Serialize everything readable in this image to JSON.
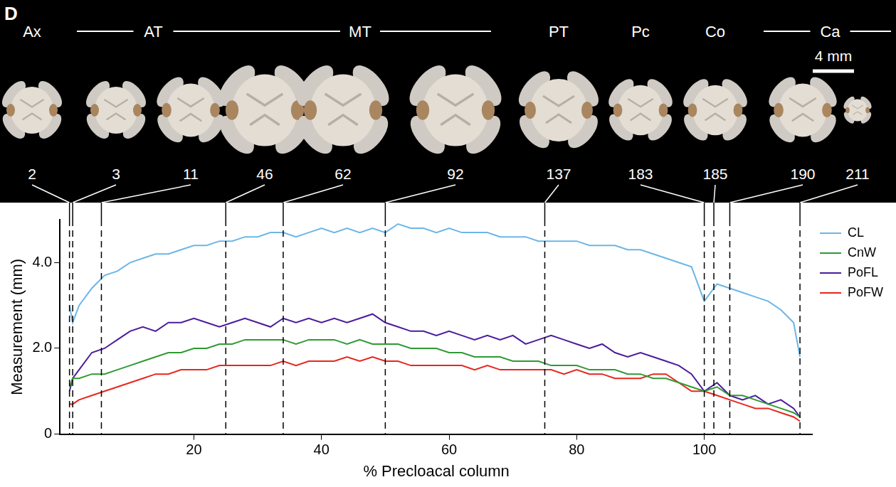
{
  "figure": {
    "panel_label": "D",
    "scale_bar": "4 mm",
    "regions": [
      {
        "label": "Ax",
        "vertebrae": [
          2
        ]
      },
      {
        "label": "AT",
        "vertebrae": [
          3,
          11
        ]
      },
      {
        "label": "MT",
        "vertebrae": [
          46,
          62,
          92
        ]
      },
      {
        "label": "PT",
        "vertebrae": [
          137
        ]
      },
      {
        "label": "Pc",
        "vertebrae": [
          183
        ]
      },
      {
        "label": "Co",
        "vertebrae": [
          185
        ]
      },
      {
        "label": "Ca",
        "vertebrae": [
          190,
          211
        ]
      }
    ]
  },
  "chart_data": {
    "type": "line",
    "x_label": "% Precloacal column",
    "y_label": "Measurement (mm)",
    "x": [
      0.5,
      1,
      2,
      4,
      6,
      8,
      10,
      12,
      14,
      16,
      18,
      20,
      22,
      24,
      26,
      28,
      30,
      32,
      34,
      36,
      38,
      40,
      42,
      44,
      46,
      48,
      50,
      52,
      54,
      56,
      58,
      60,
      62,
      64,
      66,
      68,
      70,
      72,
      74,
      76,
      78,
      80,
      82,
      84,
      86,
      88,
      90,
      92,
      94,
      96,
      98,
      100,
      102,
      104,
      106,
      108,
      110,
      112,
      114,
      115
    ],
    "series": [
      {
        "name": "CL",
        "color": "#6cb6e6",
        "values": [
          3.0,
          2.6,
          3.0,
          3.4,
          3.7,
          3.8,
          4.0,
          4.1,
          4.2,
          4.2,
          4.3,
          4.4,
          4.4,
          4.5,
          4.5,
          4.6,
          4.6,
          4.7,
          4.7,
          4.6,
          4.7,
          4.8,
          4.7,
          4.8,
          4.7,
          4.8,
          4.7,
          4.9,
          4.8,
          4.8,
          4.7,
          4.8,
          4.7,
          4.7,
          4.7,
          4.6,
          4.6,
          4.6,
          4.5,
          4.5,
          4.5,
          4.5,
          4.4,
          4.4,
          4.4,
          4.3,
          4.3,
          4.2,
          4.1,
          4.0,
          3.9,
          3.1,
          3.5,
          3.4,
          3.3,
          3.2,
          3.1,
          2.9,
          2.6,
          1.8
        ]
      },
      {
        "name": "CnW",
        "color": "#2f9a33",
        "values": [
          1.1,
          1.3,
          1.3,
          1.4,
          1.4,
          1.5,
          1.6,
          1.7,
          1.8,
          1.9,
          1.9,
          2.0,
          2.0,
          2.1,
          2.1,
          2.2,
          2.2,
          2.2,
          2.2,
          2.1,
          2.2,
          2.2,
          2.2,
          2.1,
          2.2,
          2.1,
          2.1,
          2.1,
          2.0,
          2.0,
          2.0,
          1.9,
          1.9,
          1.8,
          1.8,
          1.8,
          1.7,
          1.7,
          1.7,
          1.6,
          1.6,
          1.6,
          1.5,
          1.5,
          1.5,
          1.4,
          1.4,
          1.3,
          1.3,
          1.2,
          1.1,
          1.0,
          1.1,
          0.9,
          0.9,
          0.8,
          0.7,
          0.6,
          0.5,
          0.4
        ]
      },
      {
        "name": "PoFL",
        "color": "#4a1c9c",
        "values": [
          1.0,
          1.3,
          1.5,
          1.9,
          2.0,
          2.2,
          2.4,
          2.5,
          2.4,
          2.6,
          2.6,
          2.7,
          2.6,
          2.5,
          2.6,
          2.7,
          2.6,
          2.5,
          2.7,
          2.6,
          2.7,
          2.6,
          2.7,
          2.6,
          2.7,
          2.8,
          2.6,
          2.5,
          2.4,
          2.4,
          2.3,
          2.4,
          2.3,
          2.2,
          2.3,
          2.2,
          2.3,
          2.1,
          2.2,
          2.3,
          2.2,
          2.1,
          2.0,
          2.1,
          1.9,
          1.8,
          1.9,
          1.8,
          1.7,
          1.6,
          1.4,
          1.0,
          1.2,
          0.9,
          0.8,
          0.9,
          0.7,
          0.8,
          0.6,
          0.4
        ]
      },
      {
        "name": "PoFW",
        "color": "#e8261e",
        "values": [
          0.7,
          0.7,
          0.8,
          0.9,
          1.0,
          1.1,
          1.2,
          1.3,
          1.4,
          1.4,
          1.5,
          1.5,
          1.5,
          1.6,
          1.6,
          1.6,
          1.6,
          1.6,
          1.7,
          1.6,
          1.7,
          1.7,
          1.7,
          1.8,
          1.7,
          1.8,
          1.7,
          1.7,
          1.6,
          1.6,
          1.6,
          1.6,
          1.6,
          1.5,
          1.6,
          1.5,
          1.5,
          1.5,
          1.5,
          1.5,
          1.4,
          1.5,
          1.4,
          1.4,
          1.3,
          1.3,
          1.3,
          1.4,
          1.4,
          1.2,
          1.0,
          1.0,
          0.9,
          0.8,
          0.7,
          0.6,
          0.6,
          0.5,
          0.4,
          0.3
        ]
      }
    ],
    "vertebra_markers": [
      {
        "vertebra": 2,
        "x": 0.5
      },
      {
        "vertebra": 3,
        "x": 1
      },
      {
        "vertebra": 11,
        "x": 5.5
      },
      {
        "vertebra": 46,
        "x": 25
      },
      {
        "vertebra": 62,
        "x": 34
      },
      {
        "vertebra": 92,
        "x": 50
      },
      {
        "vertebra": 137,
        "x": 75
      },
      {
        "vertebra": 183,
        "x": 100
      },
      {
        "vertebra": 185,
        "x": 101.5
      },
      {
        "vertebra": 190,
        "x": 104
      },
      {
        "vertebra": 211,
        "x": 115
      }
    ],
    "xlim": [
      -1,
      117
    ],
    "xticks": [
      20,
      40,
      60,
      80,
      100
    ],
    "ylim": [
      0,
      5
    ],
    "yticks": [
      {
        "value": 0,
        "label": "0"
      },
      {
        "value": 2,
        "label": "2.0"
      },
      {
        "value": 4,
        "label": "4.0"
      }
    ],
    "grid": false,
    "legend": "right"
  }
}
